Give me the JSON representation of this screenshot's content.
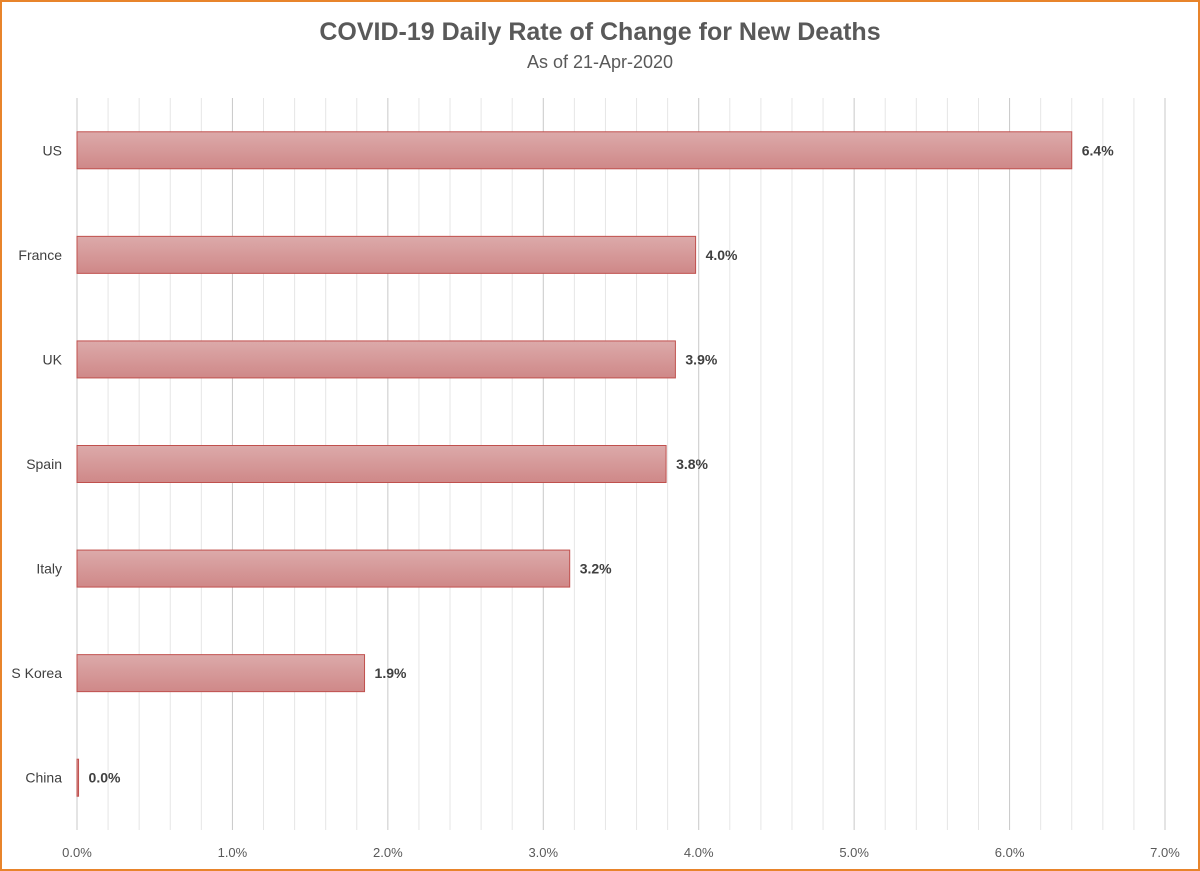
{
  "colors": {
    "frame": "#e8842b",
    "bar_fill_top": "#dcaaaa",
    "bar_fill_bottom": "#cf8888",
    "bar_stroke": "#c0504d",
    "major_grid": "#c8c8c8",
    "minor_grid": "#e6e6e6",
    "text": "#595959"
  },
  "chart_data": {
    "type": "bar",
    "orientation": "horizontal",
    "title": "COVID-19 Daily Rate of Change for New Deaths",
    "subtitle": "As of 21-Apr-2020",
    "xlabel": "",
    "ylabel": "",
    "categories": [
      "US",
      "France",
      "UK",
      "Spain",
      "Italy",
      "S Korea",
      "China"
    ],
    "values": [
      6.4,
      3.98,
      3.85,
      3.79,
      3.17,
      1.85,
      0.01
    ],
    "data_labels": [
      "6.4%",
      "4.0%",
      "3.9%",
      "3.8%",
      "3.2%",
      "1.9%",
      "0.0%"
    ],
    "xlim": [
      0,
      7
    ],
    "x_ticks": [
      "0.0%",
      "1.0%",
      "2.0%",
      "3.0%",
      "4.0%",
      "5.0%",
      "6.0%",
      "7.0%"
    ],
    "grid": true,
    "legend": "none"
  }
}
